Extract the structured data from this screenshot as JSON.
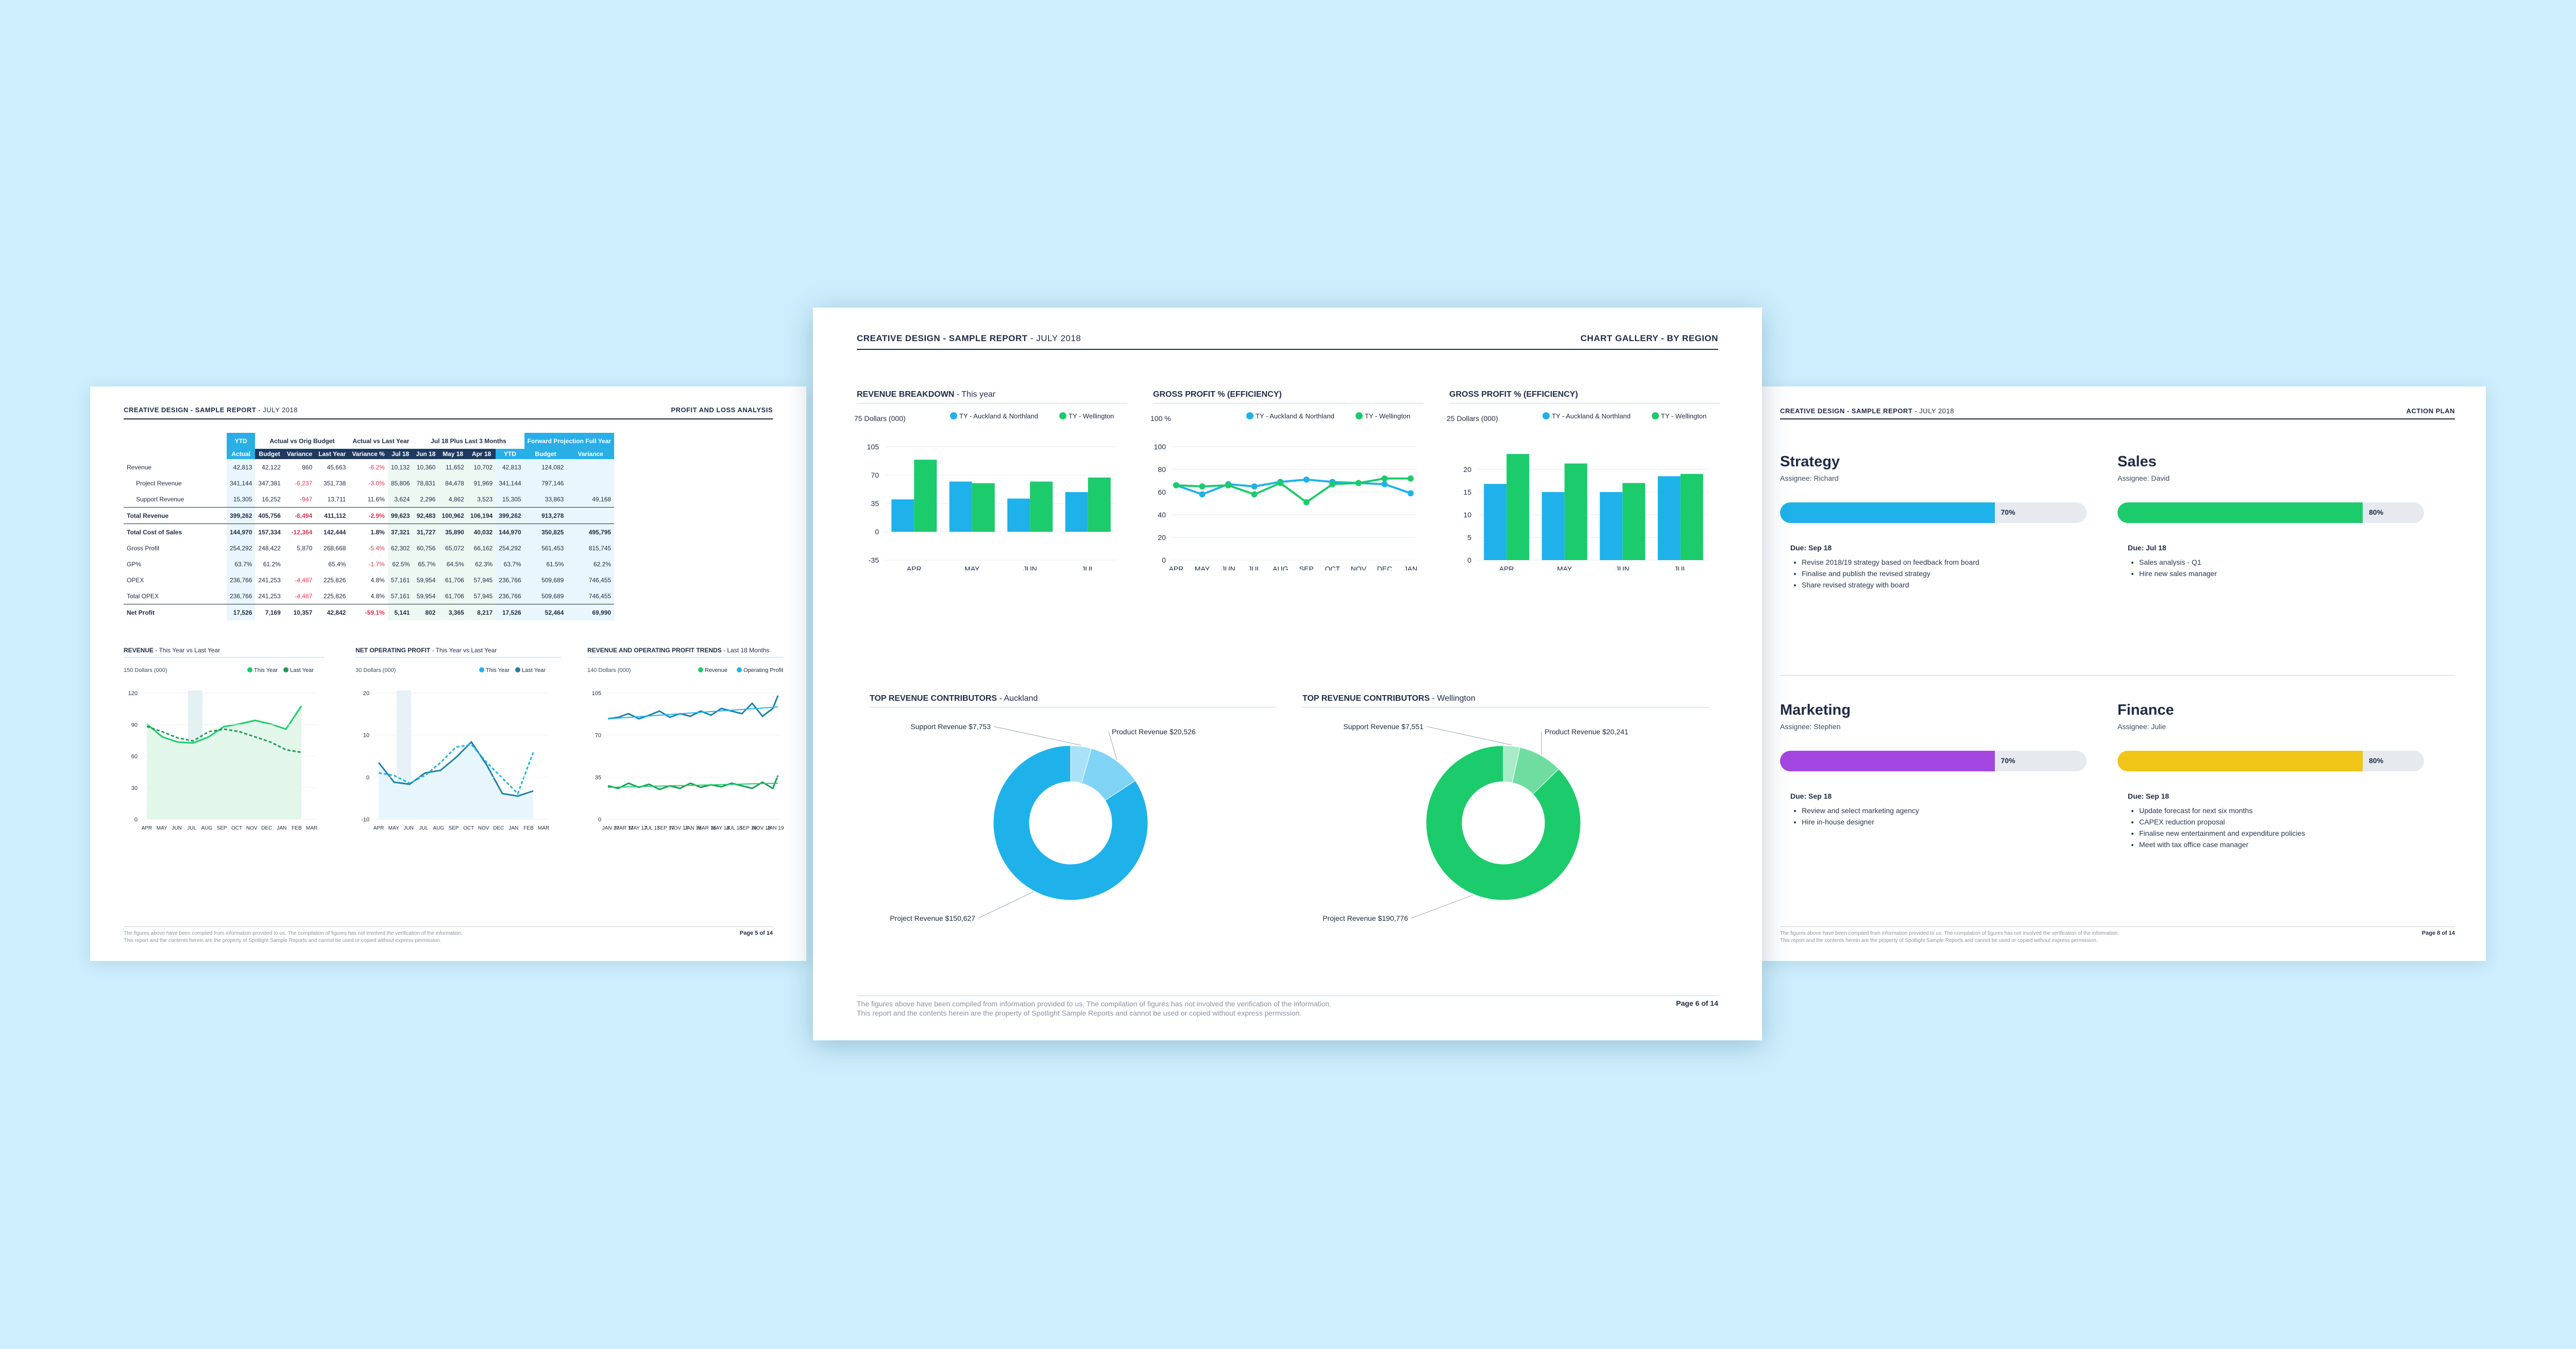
{
  "background_color": "#cdeefc",
  "colors": {
    "blue": "#1fb1ea",
    "green": "#1ccb6b",
    "navy": "#1f2a44",
    "purple": "#a447e0",
    "yellow": "#f1c518",
    "red": "#e2334e"
  },
  "left_page": {
    "header_title": "CREATIVE DESIGN - SAMPLE REPORT",
    "header_date": "- JULY 2018",
    "header_right": "PROFIT AND LOSS ANALYSIS",
    "table": {
      "group_headers": [
        "YTD",
        "Actual vs Orig Budget",
        "Actual vs Last Year",
        "Jul 18 Plus Last 3 Months",
        "Forward Projection Full Year"
      ],
      "sub_headers": [
        "Actual",
        "Budget",
        "Variance",
        "Last Year",
        "Variance %",
        "Jul 18",
        "Jun 18",
        "May 18",
        "Apr 18",
        "YTD",
        "Budget",
        "Variance"
      ],
      "rows": [
        {
          "label": "Revenue",
          "values": [
            "42,813",
            "42,122",
            "860",
            "45,663",
            "-6.2%",
            "10,132",
            "10,360",
            "11,652",
            "10,702",
            "42,813",
            "124,082",
            ""
          ]
        },
        {
          "label": "Project Revenue",
          "values": [
            "341,144",
            "347,381",
            "-6,237",
            "351,738",
            "-3.0%",
            "85,806",
            "78,831",
            "84,478",
            "91,969",
            "341,144",
            "797,146",
            ""
          ]
        },
        {
          "label": "Support Revenue",
          "values": [
            "15,305",
            "16,252",
            "-947",
            "13,711",
            "11.6%",
            "3,624",
            "2,296",
            "4,862",
            "3,523",
            "15,305",
            "33,863",
            "49,168"
          ]
        },
        {
          "label": "Total Revenue",
          "values": [
            "399,262",
            "405,756",
            "-6,494",
            "411,112",
            "-2.9%",
            "99,623",
            "92,483",
            "100,962",
            "106,194",
            "399,262",
            "913,278",
            ""
          ]
        },
        {
          "label": "Total Cost of Sales",
          "values": [
            "144,970",
            "157,334",
            "-12,364",
            "142,444",
            "1.8%",
            "37,321",
            "31,727",
            "35,890",
            "40,032",
            "144,970",
            "350,825",
            "495,795"
          ]
        },
        {
          "label": "Gross Profit",
          "values": [
            "254,292",
            "248,422",
            "5,870",
            "268,668",
            "-5.4%",
            "62,302",
            "60,756",
            "65,072",
            "66,162",
            "254,292",
            "561,453",
            "815,745"
          ]
        },
        {
          "label": "GP%",
          "values": [
            "63.7%",
            "61.2%",
            "",
            "65.4%",
            "-1.7%",
            "62.5%",
            "65.7%",
            "64.5%",
            "62.3%",
            "63.7%",
            "61.5%",
            "62.2%"
          ]
        },
        {
          "label": "OPEX",
          "values": [
            "236,766",
            "241,253",
            "-4,487",
            "225,826",
            "4.8%",
            "57,161",
            "59,954",
            "61,706",
            "57,945",
            "236,766",
            "509,689",
            "746,455"
          ]
        },
        {
          "label": "Total OPEX",
          "values": [
            "236,766",
            "241,253",
            "-4,487",
            "225,826",
            "4.8%",
            "57,161",
            "59,954",
            "61,706",
            "57,945",
            "236,766",
            "509,689",
            "746,455"
          ]
        },
        {
          "label": "Net Profit",
          "values": [
            "17,526",
            "7,169",
            "10,357",
            "42,842",
            "-59.1%",
            "5,141",
            "802",
            "3,365",
            "8,217",
            "17,526",
            "52,464",
            "69,990"
          ]
        }
      ]
    },
    "charts": [
      {
        "title": "REVENUE",
        "subtitle": "- This Year vs Last Year",
        "unit": "150 Dollars (000)",
        "legend": [
          "This Year",
          "Last Year"
        ],
        "y_ticks": [
          "120",
          "90",
          "60",
          "30",
          "0"
        ],
        "x_ticks": [
          "APR",
          "MAY",
          "JUN",
          "JUL",
          "AUG",
          "SEP",
          "OCT",
          "NOV",
          "DEC",
          "JAN",
          "FEB",
          "MAR"
        ]
      },
      {
        "title": "NET OPERATING PROFIT",
        "subtitle": "- This Year vs Last Year",
        "unit": "30 Dollars (000)",
        "legend": [
          "This Year",
          "Last Year"
        ],
        "y_ticks": [
          "20",
          "10",
          "0",
          "-10"
        ],
        "x_ticks": [
          "APR",
          "MAY",
          "JUN",
          "JUL",
          "AUG",
          "SEP",
          "OCT",
          "NOV",
          "DEC",
          "JAN",
          "FEB",
          "MAR"
        ]
      },
      {
        "title": "REVENUE AND OPERATING PROFIT TRENDS",
        "subtitle": "- Last 18 Months",
        "unit": "140 Dollars (000)",
        "legend": [
          "Revenue",
          "Operating Profit"
        ],
        "y_ticks": [
          "105",
          "70",
          "35",
          "0"
        ],
        "x_ticks": [
          "JAN 17",
          "MAR 17",
          "MAY 17",
          "JUL 17",
          "SEP 17",
          "NOV 17",
          "JAN 18",
          "MAR 18",
          "MAY 18",
          "JUL 18",
          "SEP 18",
          "NOV 18",
          "JAN 19"
        ]
      }
    ],
    "footer_lines": [
      "The figures above have been compiled from information provided to us. The compilation of figures has not involved the verification of the information.",
      "This report and the contents herein are the property of Spotlight Sample Reports and cannot be used or copied without express permission."
    ],
    "page_label": "Page 5 of 14"
  },
  "center_page": {
    "header_title": "CREATIVE DESIGN - SAMPLE REPORT",
    "header_date": "- JULY 2018",
    "header_right": "CHART GALLERY",
    "header_right_sub": "- BY REGION",
    "footer_lines": [
      "The figures above have been compiled from information provided to us. The compilation of figures has not involved the verification of the information.",
      "This report and the contents herein are the property of Spotlight Sample Reports and cannot be used or copied without express permission."
    ],
    "page_label": "Page 6 of 14",
    "revenue_title": "REVENUE BREAKDOWN",
    "revenue_subtitle": "- This year",
    "gp_title": "GROSS PROFIT % (EFFICIENCY)",
    "top_auckland_title": "TOP REVENUE CONTRIBUTORS",
    "top_auckland_subtitle": "- Auckland",
    "top_wellington_title": "TOP REVENUE CONTRIBUTORS",
    "top_wellington_subtitle": "- Wellington"
  },
  "right_page": {
    "header_title": "CREATIVE DESIGN - SAMPLE REPORT",
    "header_date": "- JULY 2018",
    "header_right": "ACTION PLAN",
    "items": [
      {
        "title": "Strategy",
        "assignee": "Assignee: Richard",
        "progress": 0.7,
        "pct_label": "70%",
        "due": "Due: Sep 18",
        "tasks": [
          "Revise 2018/19 strategy based on feedback from board",
          "Finalise and publish the revised strategy",
          "Share revised strategy with board"
        ]
      },
      {
        "title": "Sales",
        "assignee": "Assignee: David",
        "progress": 0.8,
        "pct_label": "80%",
        "due": "Due: Jul 18",
        "tasks": [
          "Sales analysis - Q1",
          "Hire new sales manager"
        ]
      },
      {
        "title": "Marketing",
        "assignee": "Assignee: Stephen",
        "progress": 0.7,
        "pct_label": "70%",
        "due": "Due: Sep 18",
        "tasks": [
          "Review and select marketing agency",
          "Hire in-house designer"
        ]
      },
      {
        "title": "Finance",
        "assignee": "Assignee: Julie",
        "progress": 0.8,
        "pct_label": "80%",
        "due": "Due: Sep 18",
        "tasks": [
          "Update forecast for next six months",
          "CAPEX reduction proposal",
          "Finalise new entertainment and expenditure policies",
          "Meet with tax office case manager"
        ]
      }
    ],
    "footer_lines": [
      "The figures above have been compiled from information provided to us. The compilation of figures has not involved the verification of the information.",
      "This report and the contents herein are the property of Spotlight Sample Reports and cannot be used or copied without express permission."
    ],
    "page_label": "Page 8 of 14"
  },
  "chart_data": [
    {
      "type": "bar",
      "title": "REVENUE BREAKDOWN",
      "subtitle": "- This year",
      "ylabel": "75 Dollars (000)",
      "categories": [
        "APR",
        "MAY",
        "JUN",
        "JUL"
      ],
      "ylim": [
        -35,
        105
      ],
      "y_ticks": [
        105,
        70,
        35,
        0,
        -35
      ],
      "series": [
        {
          "name": "TY - Auckland & Northland",
          "color": "#1fb1ea",
          "values": [
            40,
            62,
            41,
            49
          ]
        },
        {
          "name": "TY - Wellington",
          "color": "#1ccb6b",
          "values": [
            89,
            60,
            62,
            67
          ]
        }
      ]
    },
    {
      "type": "line",
      "title": "GROSS PROFIT % (EFFICIENCY)",
      "ylabel": "100 %",
      "categories": [
        "APR",
        "MAY",
        "JUN",
        "JUL",
        "AUG",
        "SEP",
        "OCT",
        "NOV",
        "DEC",
        "JAN"
      ],
      "ylim": [
        0,
        100
      ],
      "y_ticks": [
        100,
        80,
        60,
        40,
        20,
        0
      ],
      "series": [
        {
          "name": "TY - Auckland & Northland",
          "color": "#1fb1ea",
          "values": [
            66,
            58,
            67,
            65,
            69,
            71,
            69,
            68,
            67,
            59
          ]
        },
        {
          "name": "TY - Wellington",
          "color": "#1ccb6b",
          "values": [
            66,
            65,
            66,
            58,
            68,
            51,
            67,
            68,
            72,
            72
          ]
        }
      ]
    },
    {
      "type": "bar",
      "title": "GROSS PROFIT % (EFFICIENCY)",
      "ylabel": "25 Dollars (000)",
      "categories": [
        "APR",
        "MAY",
        "JUN",
        "JUL"
      ],
      "ylim": [
        0,
        25
      ],
      "y_ticks": [
        20,
        15,
        10,
        5,
        0
      ],
      "series": [
        {
          "name": "TY - Auckland & Northland",
          "color": "#1fb1ea",
          "values": [
            16.8,
            15,
            15,
            18.5
          ]
        },
        {
          "name": "TY - Wellington",
          "color": "#1ccb6b",
          "values": [
            23.4,
            21.3,
            17,
            19
          ]
        }
      ]
    },
    {
      "type": "pie",
      "title": "TOP REVENUE CONTRIBUTORS",
      "subtitle": "- Auckland",
      "labels": [
        "Support Revenue $7,753",
        "Product Revenue $20,526",
        "Project Revenue $150,627"
      ],
      "values": [
        7753,
        20526,
        150627
      ],
      "colors": [
        "#a9e2f8",
        "#7fd3f4",
        "#1fb1ea"
      ]
    },
    {
      "type": "pie",
      "title": "TOP REVENUE CONTRIBUTORS",
      "subtitle": "- Wellington",
      "labels": [
        "Support Revenue $7,551",
        "Product Revenue $20,241",
        "Project Revenue $190,776"
      ],
      "values": [
        7551,
        20241,
        190776
      ],
      "colors": [
        "#a7ecc7",
        "#6fdda0",
        "#1ccb6b"
      ]
    }
  ]
}
